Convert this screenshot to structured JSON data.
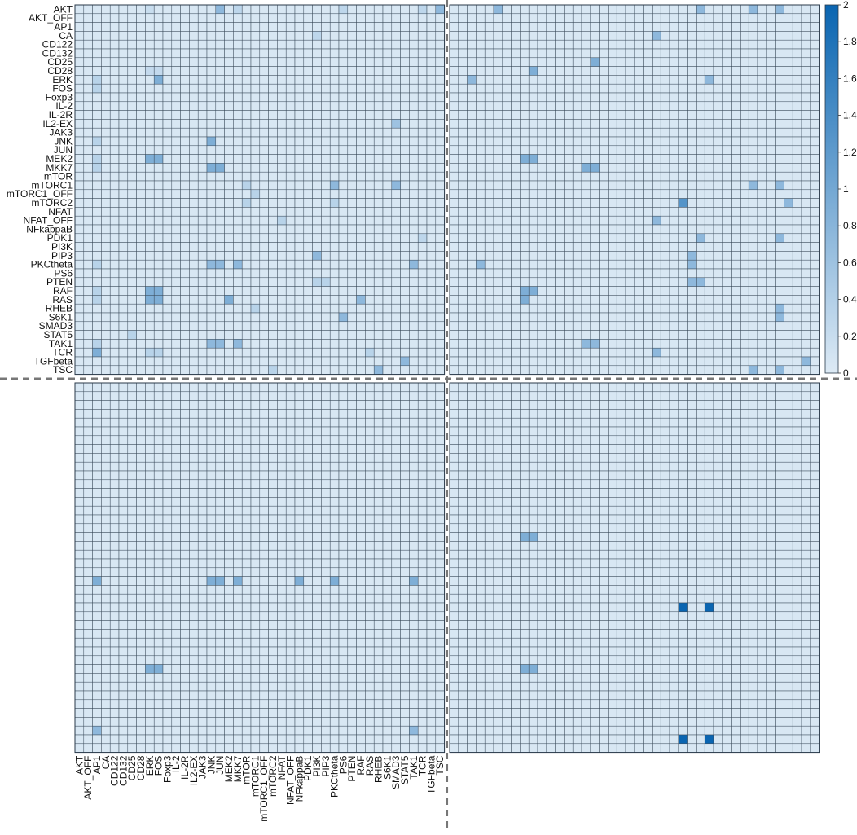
{
  "chart_data": {
    "type": "heatmap",
    "title": "",
    "xlabel": "",
    "ylabel": "",
    "labels": [
      "AKT",
      "AKT_OFF",
      "AP1",
      "CA",
      "CD122",
      "CD132",
      "CD25",
      "CD28",
      "ERK",
      "FOS",
      "Foxp3",
      "IL-2",
      "IL-2R",
      "IL2-EX",
      "JAK3",
      "JNK",
      "JUN",
      "MEK2",
      "MKK7",
      "mTOR",
      "mTORC1",
      "mTORC1_OFF",
      "mTORC2",
      "NFAT",
      "NFAT_OFF",
      "NFkappaB",
      "PDK1",
      "PI3K",
      "PIP3",
      "PKCtheta",
      "PS6",
      "PTEN",
      "RAF",
      "RAS",
      "RHEB",
      "S6K1",
      "SMAD3",
      "STAT5",
      "TAK1",
      "TCR",
      "TGFbeta",
      "TSC"
    ],
    "y_tick_labels_shown_on": "top-left panel rows",
    "x_tick_labels_shown_on": "bottom-left panel columns",
    "panels": [
      "top-left",
      "top-right",
      "bottom-left",
      "bottom-right"
    ],
    "panel_layout": "2x2 grid of 42x42 heatmaps separated by dashed lines",
    "colorbar": {
      "min": 0,
      "max": 2,
      "ticks": [
        "0",
        "0.2",
        "0.4",
        "0.6",
        "0.8",
        "1",
        "1.2",
        "1.4",
        "1.6",
        "1.8",
        "2"
      ],
      "low_color": "#ddeaf5",
      "high_color": "#0a65b1"
    },
    "background_value": 0.05,
    "grid": true,
    "cells": [
      {
        "panel": 0,
        "entries": [
          [
            "AKT",
            "JUN",
            0.75
          ],
          [
            "AKT",
            "TCR",
            0.3
          ],
          [
            "AKT",
            "MKK7",
            0.3
          ],
          [
            "AKT",
            "PS6",
            0.3
          ],
          [
            "AKT",
            "TSC",
            0.75
          ],
          [
            "AKT",
            "ERK",
            0.2
          ],
          [
            "CA",
            "PI3K",
            0.3
          ],
          [
            "CD28",
            "ERK",
            0.25
          ],
          [
            "CD28",
            "FOS",
            0.25
          ],
          [
            "ERK",
            "FOS",
            0.9
          ],
          [
            "ERK",
            "AP1",
            0.35
          ],
          [
            "FOS",
            "AP1",
            0.35
          ],
          [
            "IL2-EX",
            "SMAD3",
            0.6
          ],
          [
            "JNK",
            "JNK",
            0.9
          ],
          [
            "JNK",
            "AP1",
            0.35
          ],
          [
            "MEK2",
            "ERK",
            0.9
          ],
          [
            "MEK2",
            "FOS",
            0.9
          ],
          [
            "MKK7",
            "JNK",
            0.9
          ],
          [
            "MKK7",
            "JUN",
            0.9
          ],
          [
            "MEK2",
            "AP1",
            0.35
          ],
          [
            "MKK7",
            "AP1",
            0.35
          ],
          [
            "mTORC1",
            "mTOR",
            0.35
          ],
          [
            "mTORC1",
            "PKCtheta",
            0.75
          ],
          [
            "mTORC1",
            "SMAD3",
            0.75
          ],
          [
            "mTORC1_OFF",
            "mTORC1",
            0.35
          ],
          [
            "mTORC2",
            "mTOR",
            0.35
          ],
          [
            "mTORC2",
            "PKCtheta",
            0.35
          ],
          [
            "NFAT_OFF",
            "NFAT",
            0.35
          ],
          [
            "PDK1",
            "TCR",
            0.3
          ],
          [
            "PIP3",
            "PI3K",
            0.75
          ],
          [
            "PKCtheta",
            "JNK",
            0.75
          ],
          [
            "PKCtheta",
            "JUN",
            0.75
          ],
          [
            "PKCtheta",
            "MKK7",
            0.75
          ],
          [
            "PKCtheta",
            "TAK1",
            0.75
          ],
          [
            "PKCtheta",
            "AP1",
            0.35
          ],
          [
            "PTEN",
            "PIP3",
            0.35
          ],
          [
            "PTEN",
            "PI3K",
            0.35
          ],
          [
            "RAF",
            "ERK",
            0.9
          ],
          [
            "RAF",
            "FOS",
            0.9
          ],
          [
            "RAF",
            "AP1",
            0.35
          ],
          [
            "RAS",
            "ERK",
            0.9
          ],
          [
            "RAS",
            "FOS",
            0.9
          ],
          [
            "RAS",
            "MEK2",
            0.9
          ],
          [
            "RAS",
            "RAF",
            0.75
          ],
          [
            "RAS",
            "AP1",
            0.35
          ],
          [
            "RHEB",
            "mTORC1",
            0.35
          ],
          [
            "S6K1",
            "PS6",
            0.75
          ],
          [
            "STAT5",
            "CD25",
            0.35
          ],
          [
            "TAK1",
            "JNK",
            0.75
          ],
          [
            "TAK1",
            "JUN",
            0.75
          ],
          [
            "TAK1",
            "MKK7",
            0.75
          ],
          [
            "TAK1",
            "AP1",
            0.35
          ],
          [
            "TCR",
            "AP1",
            0.9
          ],
          [
            "TCR",
            "ERK",
            0.35
          ],
          [
            "TCR",
            "FOS",
            0.35
          ],
          [
            "TCR",
            "RAS",
            0.35
          ],
          [
            "TGFbeta",
            "STAT5",
            0.75
          ],
          [
            "TSC",
            "RHEB",
            0.75
          ],
          [
            "TSC",
            "mTORC2",
            0.35
          ]
        ]
      },
      {
        "panel": 1,
        "entries": [
          [
            "AKT",
            "CD132",
            0.75
          ],
          [
            "AKT",
            "PIP3",
            0.75
          ],
          [
            "AKT",
            "RHEB",
            0.75
          ],
          [
            "AKT",
            "STAT5",
            0.75
          ],
          [
            "CA",
            "NFAT",
            0.75
          ],
          [
            "CD25",
            "JUN",
            0.9
          ],
          [
            "CD28",
            "FOS",
            0.9
          ],
          [
            "ERK",
            "AP1",
            0.75
          ],
          [
            "ERK",
            "PKCtheta",
            0.75
          ],
          [
            "MEK2",
            "ERK",
            0.9
          ],
          [
            "MEK2",
            "FOS",
            0.9
          ],
          [
            "MKK7",
            "JNK",
            0.9
          ],
          [
            "MKK7",
            "JUN",
            0.9
          ],
          [
            "mTORC1",
            "RHEB",
            0.75
          ],
          [
            "mTORC1",
            "STAT5",
            0.75
          ],
          [
            "mTORC2",
            "PDK1",
            1.3
          ],
          [
            "mTORC2",
            "TAK1",
            0.75
          ],
          [
            "NFAT_OFF",
            "NFAT",
            0.75
          ],
          [
            "PDK1",
            "PIP3",
            0.75
          ],
          [
            "PDK1",
            "STAT5",
            0.75
          ],
          [
            "PIP3",
            "PI3K",
            0.75
          ],
          [
            "PKCtheta",
            "PI3K",
            0.75
          ],
          [
            "PKCtheta",
            "CA",
            0.75
          ],
          [
            "PTEN",
            "PIP3",
            0.75
          ],
          [
            "PTEN",
            "PI3K",
            0.75
          ],
          [
            "RAF",
            "ERK",
            0.9
          ],
          [
            "RAF",
            "FOS",
            0.9
          ],
          [
            "RAS",
            "ERK",
            0.9
          ],
          [
            "RHEB",
            "STAT5",
            0.75
          ],
          [
            "S6K1",
            "STAT5",
            0.75
          ],
          [
            "TAK1",
            "JNK",
            0.75
          ],
          [
            "TAK1",
            "JUN",
            0.75
          ],
          [
            "TCR",
            "NFAT",
            0.75
          ],
          [
            "TGFbeta",
            "TGFbeta",
            0.75
          ],
          [
            "TSC",
            "RHEB",
            0.75
          ],
          [
            "TSC",
            "STAT5",
            0.75
          ]
        ]
      },
      {
        "panel": 2,
        "entries": [
          [
            "mTORC2",
            "AP1",
            0.9
          ],
          [
            "mTORC2",
            "JNK",
            0.9
          ],
          [
            "mTORC2",
            "JUN",
            0.9
          ],
          [
            "mTORC2",
            "MKK7",
            0.9
          ],
          [
            "mTORC2",
            "NFkappaB",
            0.9
          ],
          [
            "mTORC2",
            "PKCtheta",
            0.9
          ],
          [
            "mTORC2",
            "TAK1",
            0.9
          ],
          [
            "RAF",
            "ERK",
            0.9
          ],
          [
            "RAF",
            "FOS",
            0.9
          ],
          [
            "TCR",
            "AP1",
            0.75
          ],
          [
            "TCR",
            "TAK1",
            0.75
          ]
        ]
      },
      {
        "panel": 3,
        "entries": [
          [
            "NFkappaB",
            "PDK1",
            2.0
          ],
          [
            "NFkappaB",
            "PKCtheta",
            2.0
          ],
          [
            "TGFbeta",
            "PDK1",
            2.0
          ],
          [
            "TGFbeta",
            "PKCtheta",
            2.0
          ],
          [
            "RAF",
            "ERK",
            0.9
          ],
          [
            "RAF",
            "FOS",
            0.9
          ],
          [
            "MEK2",
            "ERK",
            0.9
          ],
          [
            "MEK2",
            "FOS",
            0.9
          ]
        ]
      }
    ]
  }
}
